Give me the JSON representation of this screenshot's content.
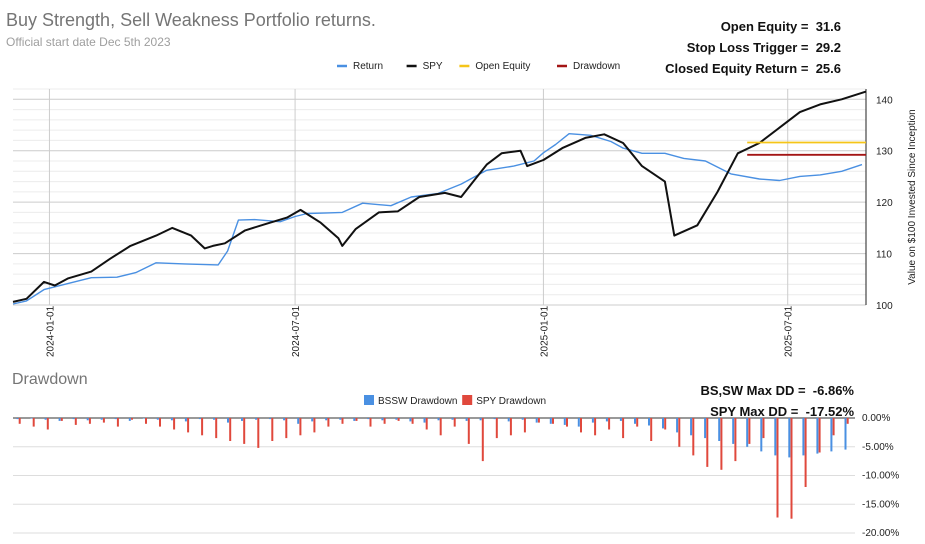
{
  "header": {
    "title": "Buy Strength, Sell Weakness Portfolio returns.",
    "subtitle": "Official start date Dec 5th 2023"
  },
  "stats_top": [
    {
      "label": "Open Equity =",
      "value": "31.6"
    },
    {
      "label": "Stop Loss Trigger =",
      "value": "29.2"
    },
    {
      "label": "Closed Equity Return =",
      "value": "25.6"
    }
  ],
  "stats_dd": [
    {
      "label": "BS,SW Max DD =",
      "value": "-6.86%"
    },
    {
      "label": "SPY Max DD =",
      "value": "-17.52%"
    }
  ],
  "drawdown_title": "Drawdown",
  "colors": {
    "return": "#4a90e2",
    "spy": "#111111",
    "open_equity": "#f5c518",
    "drawdown": "#a31515",
    "bssw_dd": "#4a90e2",
    "spy_dd": "#e0483c"
  },
  "chart_data": [
    {
      "type": "line",
      "legend_position": "top",
      "ylabel": "Value on $100 Invested Since Inception",
      "ylim": [
        100,
        142
      ],
      "yticks": [
        100,
        110,
        120,
        130,
        140
      ],
      "xticks": [
        "2024-01-01",
        "2024-07-01",
        "2025-01-01",
        "2025-07-01"
      ],
      "grid": true,
      "series": [
        {
          "name": "Return",
          "points": [
            [
              "2023-12-05",
              100.2
            ],
            [
              "2023-12-15",
              100.8
            ],
            [
              "2023-12-28",
              103.0
            ],
            [
              "2024-01-15",
              104.2
            ],
            [
              "2024-02-01",
              105.3
            ],
            [
              "2024-02-20",
              105.4
            ],
            [
              "2024-03-05",
              106.3
            ],
            [
              "2024-03-20",
              108.2
            ],
            [
              "2024-04-10",
              108.0
            ],
            [
              "2024-05-05",
              107.8
            ],
            [
              "2024-05-12",
              110.5
            ],
            [
              "2024-05-20",
              116.5
            ],
            [
              "2024-06-01",
              116.6
            ],
            [
              "2024-06-20",
              116.2
            ],
            [
              "2024-07-01",
              117.2
            ],
            [
              "2024-07-10",
              117.8
            ],
            [
              "2024-07-25",
              117.9
            ],
            [
              "2024-08-05",
              118.0
            ],
            [
              "2024-08-20",
              119.8
            ],
            [
              "2024-09-10",
              119.3
            ],
            [
              "2024-09-25",
              121.0
            ],
            [
              "2024-10-15",
              121.7
            ],
            [
              "2024-11-01",
              123.5
            ],
            [
              "2024-11-20",
              126.2
            ],
            [
              "2024-12-10",
              127.0
            ],
            [
              "2024-12-25",
              128.0
            ],
            [
              "2025-01-01",
              129.6
            ],
            [
              "2025-01-10",
              131.2
            ],
            [
              "2025-01-20",
              133.3
            ],
            [
              "2025-02-05",
              133.0
            ],
            [
              "2025-02-20",
              131.8
            ],
            [
              "2025-03-01",
              130.5
            ],
            [
              "2025-03-15",
              129.5
            ],
            [
              "2025-04-01",
              129.5
            ],
            [
              "2025-04-15",
              128.5
            ],
            [
              "2025-05-01",
              128.0
            ],
            [
              "2025-05-20",
              125.5
            ],
            [
              "2025-06-10",
              124.5
            ],
            [
              "2025-06-25",
              124.2
            ],
            [
              "2025-07-10",
              125.0
            ],
            [
              "2025-07-25",
              125.3
            ],
            [
              "2025-08-10",
              126.0
            ],
            [
              "2025-08-25",
              127.3
            ]
          ]
        },
        {
          "name": "SPY",
          "points": [
            [
              "2023-12-05",
              100.6
            ],
            [
              "2023-12-15",
              101.2
            ],
            [
              "2023-12-28",
              104.5
            ],
            [
              "2024-01-05",
              103.8
            ],
            [
              "2024-01-15",
              105.2
            ],
            [
              "2024-02-01",
              106.5
            ],
            [
              "2024-02-15",
              109.0
            ],
            [
              "2024-03-01",
              111.5
            ],
            [
              "2024-03-20",
              113.5
            ],
            [
              "2024-04-01",
              115.0
            ],
            [
              "2024-04-15",
              113.5
            ],
            [
              "2024-04-25",
              111.0
            ],
            [
              "2024-05-01",
              111.5
            ],
            [
              "2024-05-10",
              112.0
            ],
            [
              "2024-05-25",
              114.5
            ],
            [
              "2024-06-10",
              115.8
            ],
            [
              "2024-06-25",
              117.0
            ],
            [
              "2024-07-05",
              118.5
            ],
            [
              "2024-07-20",
              116.0
            ],
            [
              "2024-08-02",
              113.0
            ],
            [
              "2024-08-05",
              111.5
            ],
            [
              "2024-08-15",
              114.8
            ],
            [
              "2024-09-01",
              118.0
            ],
            [
              "2024-09-15",
              118.2
            ],
            [
              "2024-10-01",
              121.0
            ],
            [
              "2024-10-20",
              121.8
            ],
            [
              "2024-11-01",
              121.0
            ],
            [
              "2024-11-10",
              124.0
            ],
            [
              "2024-11-20",
              127.3
            ],
            [
              "2024-12-01",
              129.5
            ],
            [
              "2024-12-15",
              130.0
            ],
            [
              "2024-12-20",
              127.0
            ],
            [
              "2025-01-01",
              128.2
            ],
            [
              "2025-01-15",
              130.5
            ],
            [
              "2025-02-01",
              132.5
            ],
            [
              "2025-02-15",
              133.2
            ],
            [
              "2025-03-01",
              131.5
            ],
            [
              "2025-03-15",
              127.0
            ],
            [
              "2025-04-01",
              124.0
            ],
            [
              "2025-04-08",
              113.5
            ],
            [
              "2025-04-25",
              115.5
            ],
            [
              "2025-05-10",
              122.0
            ],
            [
              "2025-05-25",
              129.5
            ],
            [
              "2025-06-10",
              131.5
            ],
            [
              "2025-06-25",
              134.5
            ],
            [
              "2025-07-10",
              137.5
            ],
            [
              "2025-07-25",
              139.0
            ],
            [
              "2025-08-10",
              140.0
            ],
            [
              "2025-08-28",
              141.5
            ]
          ]
        },
        {
          "name": "Open Equity",
          "points": [
            [
              "2025-06-01",
              131.6
            ],
            [
              "2025-08-28",
              131.6
            ]
          ]
        },
        {
          "name": "Drawdown",
          "points": [
            [
              "2025-06-01",
              129.2
            ],
            [
              "2025-08-28",
              129.2
            ]
          ]
        }
      ]
    },
    {
      "type": "bar",
      "legend_position": "top",
      "yticks": [
        "0.00%",
        "-5.00%",
        "-10.00%",
        "-15.00%",
        "-20.00%"
      ],
      "ylim": [
        -20,
        0
      ],
      "grid": true,
      "series": [
        {
          "name": "BSSW Drawdown",
          "values": [
            -0.2,
            -0.1,
            -0.3,
            -0.5,
            -0.2,
            -0.4,
            -0.3,
            -0.2,
            -0.5,
            -0.1,
            -0.3,
            -0.4,
            -0.6,
            -0.2,
            -0.3,
            -0.8,
            -0.5,
            -0.3,
            -0.2,
            -0.4,
            -1.0,
            -0.6,
            -0.4,
            -0.3,
            -0.5,
            -0.2,
            -0.4,
            -0.3,
            -0.6,
            -0.8,
            -0.4,
            -0.3,
            -0.5,
            -0.4,
            -0.2,
            -0.6,
            -0.3,
            -0.8,
            -1.0,
            -1.2,
            -1.5,
            -0.8,
            -0.6,
            -0.5,
            -1.0,
            -1.3,
            -1.8,
            -2.5,
            -3.0,
            -3.5,
            -4.0,
            -4.5,
            -5.0,
            -5.8,
            -6.5,
            -6.86,
            -6.5,
            -6.2,
            -5.8,
            -5.5
          ]
        },
        {
          "name": "SPY Drawdown",
          "values": [
            -1.0,
            -1.5,
            -2.0,
            -0.5,
            -1.2,
            -1.0,
            -0.8,
            -1.5,
            -0.3,
            -1.0,
            -1.5,
            -2.0,
            -2.5,
            -3.0,
            -3.5,
            -4.0,
            -4.5,
            -5.2,
            -4.0,
            -3.5,
            -3.0,
            -2.5,
            -1.5,
            -1.0,
            -0.5,
            -1.5,
            -1.0,
            -0.5,
            -1.0,
            -2.0,
            -3.0,
            -1.5,
            -4.5,
            -7.5,
            -3.5,
            -3.0,
            -2.5,
            -0.8,
            -1.0,
            -1.5,
            -2.5,
            -3.0,
            -2.0,
            -3.5,
            -1.5,
            -4.0,
            -2.0,
            -5.0,
            -6.5,
            -8.5,
            -9.0,
            -7.5,
            -4.5,
            -3.5,
            -17.3,
            -17.52,
            -12.0,
            -6.0,
            -3.0,
            -1.0
          ]
        }
      ]
    }
  ]
}
